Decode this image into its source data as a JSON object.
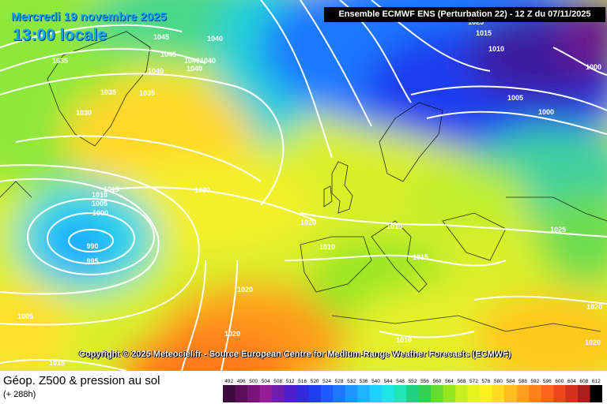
{
  "header": {
    "date_label": "Mercredi 19 novembre 2025",
    "time_label": "13:00 locale",
    "run_label": "Ensemble ECMWF ENS  (Perturbation 22)  -  12 Z du 07/11/2025"
  },
  "copyright": "Copyright © 2025 Meteociel.fr - Source European Centre for Medium-Range Weather Forecasts (ECMWF)",
  "footer": {
    "variable_title": "Géop. Z500 & pression au sol",
    "lead_time": "(+ 288h)"
  },
  "legend": {
    "values": [
      "492",
      "496",
      "500",
      "504",
      "508",
      "512",
      "516",
      "520",
      "524",
      "528",
      "532",
      "536",
      "540",
      "544",
      "548",
      "552",
      "556",
      "560",
      "564",
      "568",
      "572",
      "576",
      "580",
      "584",
      "588",
      "592",
      "596",
      "600",
      "604",
      "608",
      "612"
    ],
    "colors": [
      "#3c0a3c",
      "#5a0f5a",
      "#781478",
      "#961e96",
      "#6e1eaa",
      "#501ec8",
      "#3228dc",
      "#1e3cf0",
      "#1e5aff",
      "#1e78ff",
      "#1e96ff",
      "#1eb4ff",
      "#1ed2ff",
      "#1ee6e6",
      "#1ee6b4",
      "#1ed282",
      "#32d250",
      "#64dc32",
      "#96e61e",
      "#c8f01e",
      "#e6f51e",
      "#fff01e",
      "#ffdc1e",
      "#ffbe1e",
      "#ffa01e",
      "#ff821e",
      "#ff641e",
      "#f0461e",
      "#d2321e",
      "#aa1e1e",
      "#000000"
    ]
  },
  "pressure_labels": [
    {
      "id": "1045a",
      "text": "1045"
    },
    {
      "id": "1040a",
      "text": "1040"
    },
    {
      "id": "1035a",
      "text": "1035"
    },
    {
      "id": "1045b",
      "text": "1045"
    },
    {
      "id": "1040b",
      "text": "1040"
    },
    {
      "id": "1040c",
      "text": "1040"
    },
    {
      "id": "1040d",
      "text": "1040"
    },
    {
      "id": "1040e",
      "text": "1040"
    },
    {
      "id": "1035b",
      "text": "1035"
    },
    {
      "id": "1035c",
      "text": "1035"
    },
    {
      "id": "1030a",
      "text": "1030"
    },
    {
      "id": "1025a",
      "text": "1025"
    },
    {
      "id": "1015a",
      "text": "1015"
    },
    {
      "id": "1010a",
      "text": "1010"
    },
    {
      "id": "1005a",
      "text": "1005"
    },
    {
      "id": "1000a",
      "text": "1000"
    },
    {
      "id": "1000b",
      "text": "1000"
    },
    {
      "id": "1015b",
      "text": "1015"
    },
    {
      "id": "1010b",
      "text": "1010"
    },
    {
      "id": "1005b",
      "text": "1005"
    },
    {
      "id": "1000c",
      "text": "1000"
    },
    {
      "id": "990",
      "text": "990"
    },
    {
      "id": "995",
      "text": "995"
    },
    {
      "id": "1030b",
      "text": "1030"
    },
    {
      "id": "1020a",
      "text": "1020"
    },
    {
      "id": "1015c",
      "text": "1015"
    },
    {
      "id": "1010c",
      "text": "1010"
    },
    {
      "id": "1015d",
      "text": "1015"
    },
    {
      "id": "1025b",
      "text": "1025"
    },
    {
      "id": "1020b",
      "text": "1020"
    },
    {
      "id": "1005c",
      "text": "1005"
    },
    {
      "id": "1020c",
      "text": "1020"
    },
    {
      "id": "1015e",
      "text": "1015"
    },
    {
      "id": "1010d",
      "text": "1010"
    },
    {
      "id": "1020d",
      "text": "1020"
    },
    {
      "id": "1020e",
      "text": "1020"
    }
  ]
}
